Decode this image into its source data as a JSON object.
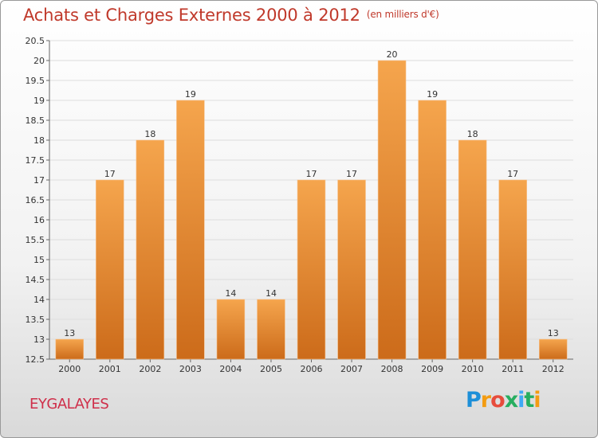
{
  "header": {
    "title": "Achats et Charges Externes 2000 à 2012",
    "subtitle": "(en milliers d'€)"
  },
  "footer": {
    "commune": "EYGALAYES",
    "logo_letters": [
      "P",
      "r",
      "o",
      "x",
      "i",
      "t",
      "i"
    ]
  },
  "colors": {
    "bar_top": "#f5a54d",
    "bar_bottom": "#cc6b1a",
    "title": "#c0392b",
    "grid": "#dddddd"
  },
  "chart_data": {
    "type": "bar",
    "categories": [
      "2000",
      "2001",
      "2002",
      "2003",
      "2004",
      "2005",
      "2006",
      "2007",
      "2008",
      "2009",
      "2010",
      "2011",
      "2012"
    ],
    "values": [
      13,
      17,
      18,
      19,
      14,
      14,
      17,
      17,
      20,
      19,
      18,
      17,
      13
    ],
    "ylim": [
      12.5,
      20.5
    ],
    "yticks": [
      "12.5",
      "13",
      "13.5",
      "14",
      "14.5",
      "15",
      "15.5",
      "16",
      "16.5",
      "17",
      "17.5",
      "18",
      "18.5",
      "19",
      "19.5",
      "20",
      "20.5"
    ],
    "grid": true
  }
}
